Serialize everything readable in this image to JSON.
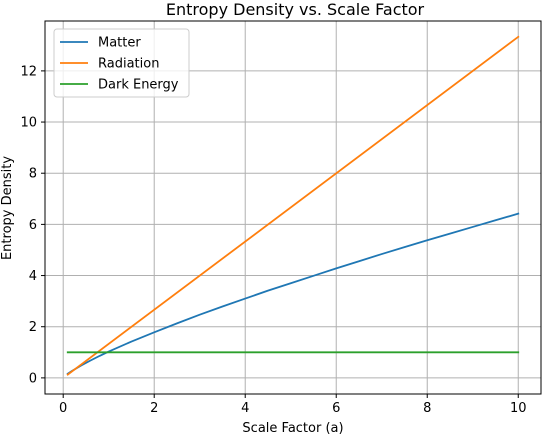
{
  "chart_data": {
    "type": "line",
    "title": "Entropy Density vs. Scale Factor",
    "xlabel": "Scale Factor (a)",
    "ylabel": "Entropy Density",
    "xlim": [
      -0.4,
      10.5
    ],
    "ylim": [
      -0.63,
      13.95
    ],
    "xticks": [
      0,
      2,
      4,
      6,
      8,
      10
    ],
    "yticks": [
      0,
      2,
      4,
      6,
      8,
      10,
      12
    ],
    "grid": true,
    "legend_position": "upper-left",
    "series": [
      {
        "name": "Matter",
        "color": "#1f77b4",
        "x": [
          0.1,
          0.2,
          0.4,
          0.6,
          0.8,
          1,
          1.5,
          2,
          2.5,
          3,
          3.5,
          4,
          4.5,
          5,
          5.5,
          6,
          6.5,
          7,
          7.5,
          8,
          8.5,
          9,
          9.5,
          10
        ],
        "y": [
          0.16,
          0.28,
          0.49,
          0.68,
          0.86,
          1.03,
          1.42,
          1.78,
          2.13,
          2.47,
          2.79,
          3.1,
          3.41,
          3.7,
          3.99,
          4.28,
          4.56,
          4.84,
          5.11,
          5.38,
          5.64,
          5.9,
          6.16,
          6.42
        ]
      },
      {
        "name": "Radiation",
        "color": "#ff7f0e",
        "x": [
          0.1,
          10
        ],
        "y": [
          0.13,
          13.33
        ]
      },
      {
        "name": "Dark Energy",
        "color": "#2ca02c",
        "x": [
          0.1,
          10
        ],
        "y": [
          1.0,
          1.0
        ]
      }
    ]
  }
}
